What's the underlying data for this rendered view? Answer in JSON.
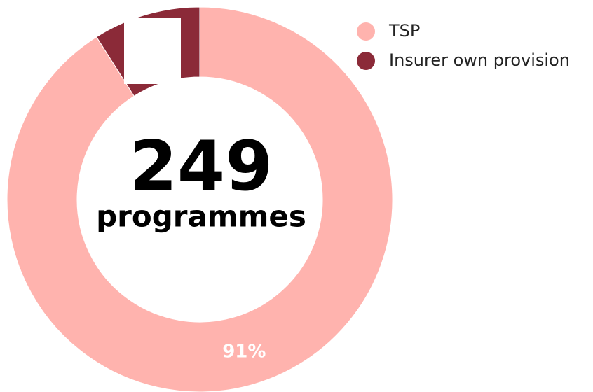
{
  "chart_data": {
    "type": "pie",
    "center_value": "249",
    "center_label": "programmes",
    "categories": [
      "TSP",
      "Insurer own provision"
    ],
    "values": [
      91,
      9
    ],
    "value_labels": [
      "91%",
      null
    ],
    "colors": [
      "#ffb3ae",
      "#8b2a38"
    ],
    "legend": "top-right"
  }
}
